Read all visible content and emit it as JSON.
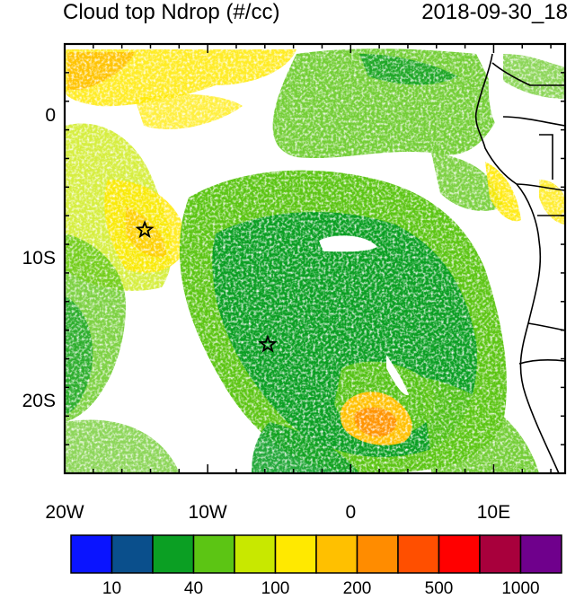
{
  "title": {
    "left": "Cloud top Ndrop (#/cc)",
    "right": "2018-09-30_18"
  },
  "map": {
    "lon_range": [
      -20,
      15
    ],
    "lat_range": [
      -25,
      5
    ],
    "y_ticks": [
      {
        "lat": 0,
        "label": "0"
      },
      {
        "lat": -10,
        "label": "10S"
      },
      {
        "lat": -20,
        "label": "20S"
      }
    ],
    "x_ticks": [
      {
        "lon": -20,
        "label": "20W"
      },
      {
        "lon": -10,
        "label": "10W"
      },
      {
        "lon": 0,
        "label": "0"
      },
      {
        "lon": 10,
        "label": "10E"
      }
    ],
    "stars": [
      {
        "lon": -14.4,
        "lat": -8.0
      },
      {
        "lon": -5.8,
        "lat": -16.0
      }
    ]
  },
  "colorbar": {
    "colors": [
      "#0a14ff",
      "#0a4f8c",
      "#0b9f23",
      "#5cc514",
      "#c8e800",
      "#ffe900",
      "#ffc000",
      "#ff8c00",
      "#ff4f00",
      "#ff0000",
      "#a8003c",
      "#6f008c"
    ],
    "labels": [
      {
        "text": "10",
        "index": 1
      },
      {
        "text": "40",
        "index": 3
      },
      {
        "text": "100",
        "index": 5
      },
      {
        "text": "200",
        "index": 7
      },
      {
        "text": "500",
        "index": 9
      },
      {
        "text": "1000",
        "index": 11
      }
    ]
  }
}
